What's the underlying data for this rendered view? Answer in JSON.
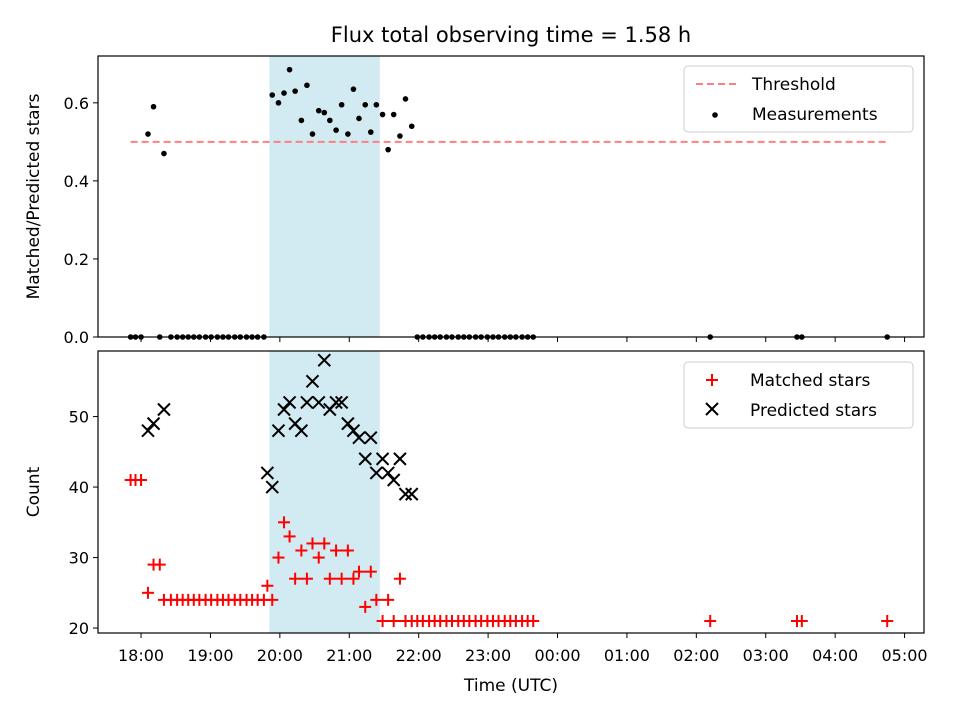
{
  "chart_data": [
    {
      "type": "scatter",
      "title": "Flux total observing time = 1.58 h",
      "ylabel": "Matched/Predicted stars",
      "xlabel": "",
      "x_unit": "hours after 00:00 UTC of the first night",
      "xlim": [
        17.38,
        29.28
      ],
      "ylim": [
        0,
        0.72
      ],
      "yticks": [
        0.0,
        0.2,
        0.4,
        0.6
      ],
      "ytick_labels": [
        "0.0",
        "0.2",
        "0.4",
        "0.6"
      ],
      "shaded_span": {
        "x0": 19.85,
        "x1": 21.44,
        "color": "#add8e6"
      },
      "legend": {
        "placement": "upper right",
        "entries": [
          "Threshold",
          "Measurements"
        ]
      },
      "threshold": {
        "name": "Threshold",
        "y": 0.5,
        "x0": 17.85,
        "x1": 28.75,
        "color": "#ff7f7f"
      },
      "series": [
        {
          "name": "Measurements",
          "color": "#000000",
          "x": [
            17.85,
            17.92,
            18.0,
            18.1,
            18.18,
            18.27,
            18.33,
            18.43,
            18.52,
            18.6,
            18.68,
            18.76,
            18.84,
            18.93,
            19.01,
            19.1,
            19.18,
            19.26,
            19.35,
            19.43,
            19.52,
            19.6,
            19.68,
            19.77,
            19.89,
            19.98,
            20.06,
            20.14,
            20.22,
            20.31,
            20.39,
            20.47,
            20.56,
            20.64,
            20.72,
            20.81,
            20.89,
            20.98,
            21.06,
            21.14,
            21.23,
            21.31,
            21.39,
            21.48,
            21.56,
            21.64,
            21.73,
            21.81,
            21.9,
            21.98,
            22.06,
            22.15,
            22.23,
            22.31,
            22.4,
            22.48,
            22.57,
            22.65,
            22.73,
            22.82,
            22.9,
            22.99,
            23.07,
            23.15,
            23.24,
            23.32,
            23.4,
            23.49,
            23.57,
            23.65,
            26.2,
            27.45,
            27.52,
            28.75
          ],
          "y": [
            0.0,
            0.0,
            0.0,
            0.52,
            0.59,
            0.0,
            0.47,
            0.0,
            0.0,
            0.0,
            0.0,
            0.0,
            0.0,
            0.0,
            0.0,
            0.0,
            0.0,
            0.0,
            0.0,
            0.0,
            0.0,
            0.0,
            0.0,
            0.0,
            0.62,
            0.6,
            0.625,
            0.685,
            0.63,
            0.555,
            0.645,
            0.52,
            0.58,
            0.575,
            0.555,
            0.53,
            0.595,
            0.52,
            0.635,
            0.56,
            0.595,
            0.525,
            0.595,
            0.57,
            0.48,
            0.57,
            0.515,
            0.61,
            0.54,
            0.0,
            0.0,
            0.0,
            0.0,
            0.0,
            0.0,
            0.0,
            0.0,
            0.0,
            0.0,
            0.0,
            0.0,
            0.0,
            0.0,
            0.0,
            0.0,
            0.0,
            0.0,
            0.0,
            0.0,
            0.0,
            0.0,
            0.0,
            0.0,
            0.0
          ]
        }
      ]
    },
    {
      "type": "scatter",
      "title": "",
      "ylabel": "Count",
      "xlabel": "Time (UTC)",
      "x_unit": "hours after 00:00 UTC of the first night",
      "xlim": [
        17.38,
        29.28
      ],
      "ylim": [
        19.3,
        59.3
      ],
      "yticks": [
        20,
        30,
        40,
        50
      ],
      "ytick_labels": [
        "20",
        "30",
        "40",
        "50"
      ],
      "xticks": [
        18,
        19,
        20,
        21,
        22,
        23,
        24,
        25,
        26,
        27,
        28,
        29
      ],
      "xtick_labels": [
        "18:00",
        "19:00",
        "20:00",
        "21:00",
        "22:00",
        "23:00",
        "00:00",
        "01:00",
        "02:00",
        "03:00",
        "04:00",
        "05:00"
      ],
      "shaded_span": {
        "x0": 19.85,
        "x1": 21.44,
        "color": "#add8e6"
      },
      "legend": {
        "placement": "upper right",
        "entries": [
          "Matched stars",
          "Predicted stars"
        ]
      },
      "series": [
        {
          "name": "Matched stars",
          "marker": "plus",
          "color": "#ff0000",
          "x": [
            17.85,
            17.92,
            18.0,
            18.1,
            18.18,
            18.27,
            18.33,
            18.43,
            18.52,
            18.6,
            18.68,
            18.76,
            18.84,
            18.93,
            19.01,
            19.1,
            19.18,
            19.26,
            19.35,
            19.43,
            19.52,
            19.6,
            19.68,
            19.77,
            19.82,
            19.89,
            19.98,
            20.06,
            20.14,
            20.22,
            20.31,
            20.39,
            20.47,
            20.56,
            20.64,
            20.72,
            20.81,
            20.89,
            20.98,
            21.06,
            21.14,
            21.23,
            21.31,
            21.39,
            21.48,
            21.56,
            21.64,
            21.73,
            21.81,
            21.9,
            21.98,
            22.06,
            22.15,
            22.23,
            22.31,
            22.4,
            22.48,
            22.57,
            22.65,
            22.73,
            22.82,
            22.9,
            22.99,
            23.07,
            23.15,
            23.24,
            23.32,
            23.4,
            23.49,
            23.57,
            23.65,
            26.2,
            27.45,
            27.52,
            28.75
          ],
          "y": [
            41,
            41,
            41,
            25,
            29,
            29,
            24,
            24,
            24,
            24,
            24,
            24,
            24,
            24,
            24,
            24,
            24,
            24,
            24,
            24,
            24,
            24,
            24,
            24,
            26,
            24,
            30,
            35,
            33,
            27,
            31,
            27,
            32,
            30,
            32,
            27,
            31,
            27,
            31,
            27,
            28,
            23,
            28,
            24,
            21,
            24,
            21,
            27,
            21,
            21,
            21,
            21,
            21,
            21,
            21,
            21,
            21,
            21,
            21,
            21,
            21,
            21,
            21,
            21,
            21,
            21,
            21,
            21,
            21,
            21,
            21,
            21,
            21,
            21,
            21
          ]
        },
        {
          "name": "Predicted stars",
          "marker": "x",
          "color": "#000000",
          "x": [
            18.1,
            18.18,
            18.33,
            19.82,
            19.89,
            19.98,
            20.06,
            20.14,
            20.22,
            20.31,
            20.39,
            20.47,
            20.56,
            20.64,
            20.72,
            20.81,
            20.89,
            20.98,
            21.06,
            21.14,
            21.23,
            21.31,
            21.39,
            21.48,
            21.56,
            21.64,
            21.73,
            21.81,
            21.9
          ],
          "y": [
            48,
            49,
            51,
            42,
            40,
            48,
            51,
            52,
            49,
            48,
            52,
            55,
            52,
            58,
            51,
            52,
            52,
            49,
            48,
            47,
            44,
            47,
            42,
            44,
            42,
            41,
            44,
            39,
            39
          ]
        }
      ]
    }
  ]
}
